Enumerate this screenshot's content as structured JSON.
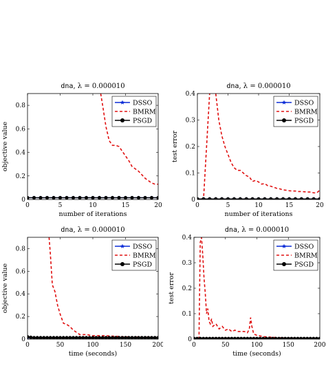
{
  "chart_data": [
    {
      "type": "line",
      "title_mono": "dna",
      "title_rest": ", λ = 0.000010",
      "xlabel": "number of iterations",
      "ylabel": "objective value",
      "xlim": [
        0,
        20
      ],
      "ylim": [
        0,
        0.9
      ],
      "xticks": [
        0,
        5,
        10,
        15,
        20
      ],
      "yticks": [
        0,
        0.2,
        0.4,
        0.6,
        0.8
      ],
      "ytick_labels": [
        "0",
        "0.2",
        "0.4",
        "0.6",
        "0.8"
      ],
      "legend_position": "top-right",
      "series": [
        {
          "name": "DSSO",
          "color": "#0a2bd6",
          "dash": "",
          "marker": "star",
          "x": [
            0,
            1,
            2,
            3,
            4,
            5,
            6,
            7,
            8,
            9,
            10,
            11,
            12,
            13,
            14,
            15,
            16,
            17,
            18,
            19,
            20
          ],
          "y": [
            0.015,
            0.015,
            0.015,
            0.015,
            0.015,
            0.015,
            0.015,
            0.015,
            0.015,
            0.015,
            0.015,
            0.015,
            0.015,
            0.015,
            0.015,
            0.015,
            0.015,
            0.015,
            0.015,
            0.015,
            0.015
          ]
        },
        {
          "name": "BMRM",
          "color": "#e01010",
          "dash": "4,3",
          "marker": "none",
          "x": [
            11.2,
            11.5,
            12,
            12.5,
            13,
            13.5,
            14,
            14.5,
            15,
            15.5,
            16,
            16.5,
            17,
            17.5,
            18,
            18.5,
            19,
            19.5,
            20
          ],
          "y": [
            0.9,
            0.8,
            0.62,
            0.5,
            0.46,
            0.46,
            0.45,
            0.41,
            0.37,
            0.33,
            0.28,
            0.26,
            0.24,
            0.21,
            0.18,
            0.16,
            0.14,
            0.13,
            0.13
          ]
        },
        {
          "name": "PSGD",
          "color": "#000000",
          "dash": "",
          "marker": "circle",
          "x": [
            0,
            1,
            2,
            3,
            4,
            5,
            6,
            7,
            8,
            9,
            10,
            11,
            12,
            13,
            14,
            15,
            16,
            17,
            18,
            19,
            20
          ],
          "y": [
            0.015,
            0.015,
            0.015,
            0.015,
            0.015,
            0.015,
            0.015,
            0.015,
            0.015,
            0.015,
            0.015,
            0.015,
            0.015,
            0.015,
            0.015,
            0.015,
            0.015,
            0.015,
            0.015,
            0.015,
            0.015
          ]
        }
      ]
    },
    {
      "type": "line",
      "title_mono": "dna",
      "title_rest": ", λ = 0.000010",
      "xlabel": "number of iterations",
      "ylabel": "test error",
      "xlim": [
        0,
        20
      ],
      "ylim": [
        0,
        0.4
      ],
      "xticks": [
        0,
        5,
        10,
        15,
        20
      ],
      "yticks": [
        0,
        0.1,
        0.2,
        0.3,
        0.4
      ],
      "ytick_labels": [
        "0",
        "0.1",
        "0.2",
        "0.3",
        "0.4"
      ],
      "legend_position": "top-right",
      "series": [
        {
          "name": "DSSO",
          "color": "#0a2bd6",
          "dash": "",
          "marker": "star",
          "x": [
            0,
            1,
            2,
            3,
            4,
            5,
            6,
            7,
            8,
            9,
            10,
            11,
            12,
            13,
            14,
            15,
            16,
            17,
            18,
            19,
            20
          ],
          "y": [
            0.002,
            0.002,
            0.002,
            0.002,
            0.002,
            0.002,
            0.002,
            0.002,
            0.002,
            0.002,
            0.002,
            0.002,
            0.002,
            0.002,
            0.002,
            0.002,
            0.002,
            0.002,
            0.002,
            0.002,
            0.002
          ]
        },
        {
          "name": "BMRM",
          "color": "#e01010",
          "dash": "4,3",
          "marker": "none",
          "x": [
            0,
            1,
            1.5,
            2,
            2.5,
            3,
            3.5,
            4,
            4.5,
            5,
            5.5,
            6,
            6.5,
            7,
            7.5,
            8,
            8.5,
            9,
            9.5,
            10,
            10.5,
            11,
            11.5,
            12,
            12.5,
            13,
            13.5,
            14,
            14.5,
            15,
            15.5,
            16,
            16.5,
            17,
            17.5,
            18,
            18.5,
            19,
            19.5,
            20
          ],
          "y": [
            0.0,
            0.0,
            0.2,
            0.4,
            0.41,
            0.4,
            0.3,
            0.24,
            0.2,
            0.17,
            0.14,
            0.12,
            0.11,
            0.11,
            0.1,
            0.09,
            0.085,
            0.068,
            0.072,
            0.066,
            0.058,
            0.06,
            0.052,
            0.05,
            0.046,
            0.042,
            0.04,
            0.036,
            0.035,
            0.033,
            0.032,
            0.032,
            0.03,
            0.03,
            0.029,
            0.028,
            0.028,
            0.025,
            0.025,
            0.035
          ]
        },
        {
          "name": "PSGD",
          "color": "#000000",
          "dash": "",
          "marker": "circle",
          "x": [
            0,
            1,
            2,
            3,
            4,
            5,
            6,
            7,
            8,
            9,
            10,
            11,
            12,
            13,
            14,
            15,
            16,
            17,
            18,
            19,
            20
          ],
          "y": [
            0.002,
            0.002,
            0.002,
            0.002,
            0.002,
            0.002,
            0.002,
            0.002,
            0.002,
            0.002,
            0.002,
            0.002,
            0.002,
            0.002,
            0.002,
            0.002,
            0.002,
            0.002,
            0.002,
            0.002,
            0.002
          ]
        }
      ]
    },
    {
      "type": "line",
      "title_mono": "dna",
      "title_rest": ", λ = 0.000010",
      "xlabel": "time (seconds)",
      "ylabel": "objective value",
      "xlim": [
        0,
        200
      ],
      "ylim": [
        0,
        0.9
      ],
      "xticks": [
        0,
        50,
        100,
        150,
        200
      ],
      "yticks": [
        0,
        0.2,
        0.4,
        0.6,
        0.8
      ],
      "ytick_labels": [
        "0",
        "0.2",
        "0.4",
        "0.6",
        "0.8"
      ],
      "legend_position": "top-right",
      "series": [
        {
          "name": "DSSO",
          "color": "#0a2bd6",
          "dash": "",
          "marker": "star",
          "x": [
            0,
            200
          ],
          "y": [
            0.012,
            0.012
          ]
        },
        {
          "name": "BMRM",
          "color": "#e01010",
          "dash": "4,3",
          "marker": "none",
          "x": [
            33,
            35,
            38,
            42,
            46,
            50,
            55,
            60,
            65,
            70,
            75,
            80,
            90,
            100,
            120,
            150,
            200
          ],
          "y": [
            0.9,
            0.75,
            0.48,
            0.42,
            0.3,
            0.22,
            0.14,
            0.13,
            0.11,
            0.08,
            0.06,
            0.04,
            0.04,
            0.03,
            0.03,
            0.02,
            0.015
          ]
        },
        {
          "name": "PSGD",
          "color": "#000000",
          "dash": "",
          "marker": "circle",
          "x": [
            0,
            5,
            10,
            15,
            20,
            25,
            30,
            35,
            40,
            45,
            50,
            55,
            60,
            65,
            70,
            75,
            80,
            85,
            90,
            95,
            100,
            105,
            110,
            115,
            120,
            125,
            130,
            135,
            140,
            145,
            150,
            155,
            160,
            165,
            170,
            175,
            180,
            185,
            190,
            195,
            200
          ],
          "y": [
            0.02,
            0.015,
            0.012,
            0.012,
            0.012,
            0.012,
            0.012,
            0.012,
            0.012,
            0.012,
            0.012,
            0.012,
            0.012,
            0.012,
            0.012,
            0.012,
            0.012,
            0.012,
            0.012,
            0.012,
            0.012,
            0.012,
            0.012,
            0.012,
            0.012,
            0.012,
            0.012,
            0.012,
            0.012,
            0.012,
            0.012,
            0.012,
            0.012,
            0.012,
            0.012,
            0.012,
            0.012,
            0.012,
            0.012,
            0.012,
            0.012
          ]
        }
      ]
    },
    {
      "type": "line",
      "title_mono": "dna",
      "title_rest": ", λ = 0.000010",
      "xlabel": "time (seconds)",
      "ylabel": "test error",
      "xlim": [
        0,
        200
      ],
      "ylim": [
        0,
        0.4
      ],
      "xticks": [
        0,
        50,
        100,
        150,
        200
      ],
      "yticks": [
        0,
        0.1,
        0.2,
        0.3,
        0.4
      ],
      "ytick_labels": [
        "0",
        "0.1",
        "0.2",
        "0.3",
        "0.4"
      ],
      "legend_position": "top-right",
      "series": [
        {
          "name": "DSSO",
          "color": "#0a2bd6",
          "dash": "",
          "marker": "star",
          "x": [
            0,
            200
          ],
          "y": [
            0.002,
            0.002
          ]
        },
        {
          "name": "BMRM",
          "color": "#e01010",
          "dash": "4,3",
          "marker": "none",
          "x": [
            0,
            8,
            10,
            12,
            14,
            16,
            18,
            20,
            22,
            24,
            26,
            28,
            30,
            35,
            40,
            45,
            50,
            55,
            60,
            65,
            70,
            75,
            80,
            85,
            88,
            90,
            92,
            95,
            100,
            110,
            120,
            140,
            160,
            180,
            200
          ],
          "y": [
            0.0,
            0.0,
            0.38,
            0.4,
            0.33,
            0.24,
            0.18,
            0.1,
            0.12,
            0.07,
            0.06,
            0.08,
            0.05,
            0.06,
            0.04,
            0.05,
            0.035,
            0.04,
            0.03,
            0.035,
            0.03,
            0.03,
            0.03,
            0.025,
            0.04,
            0.085,
            0.05,
            0.02,
            0.015,
            0.01,
            0.008,
            0.005,
            0.004,
            0.003,
            0.003
          ]
        },
        {
          "name": "PSGD",
          "color": "#000000",
          "dash": "",
          "marker": "circle",
          "x": [
            0,
            5,
            10,
            15,
            20,
            25,
            30,
            35,
            40,
            45,
            50,
            55,
            60,
            65,
            70,
            75,
            80,
            85,
            90,
            95,
            100,
            105,
            110,
            115,
            120,
            125,
            130,
            135,
            140,
            145,
            150,
            155,
            160,
            165,
            170,
            175,
            180,
            185,
            190,
            195,
            200
          ],
          "y": [
            0.002,
            0.002,
            0.002,
            0.002,
            0.002,
            0.002,
            0.002,
            0.002,
            0.002,
            0.002,
            0.002,
            0.002,
            0.002,
            0.002,
            0.002,
            0.002,
            0.002,
            0.002,
            0.002,
            0.002,
            0.002,
            0.002,
            0.002,
            0.002,
            0.002,
            0.002,
            0.002,
            0.002,
            0.002,
            0.002,
            0.002,
            0.002,
            0.002,
            0.002,
            0.002,
            0.002,
            0.002,
            0.002,
            0.002,
            0.002,
            0.002
          ]
        }
      ]
    }
  ]
}
